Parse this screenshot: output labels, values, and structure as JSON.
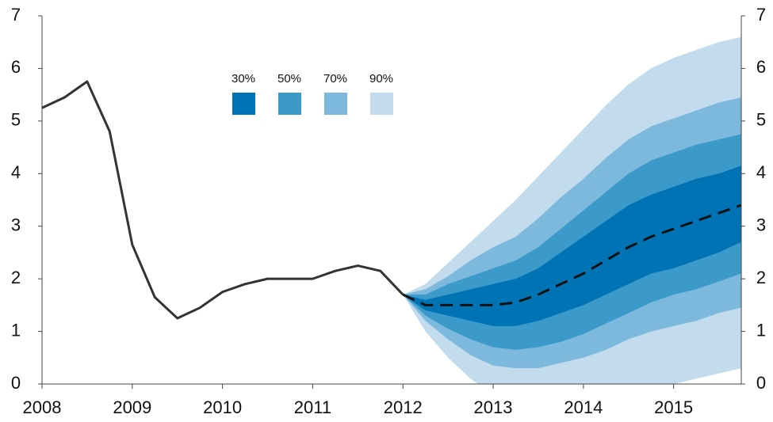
{
  "chart_data": {
    "type": "fan",
    "x": [
      2008,
      2008.25,
      2008.5,
      2008.75,
      2009,
      2009.25,
      2009.5,
      2009.75,
      2010,
      2010.25,
      2010.5,
      2010.75,
      2011,
      2011.25,
      2011.5,
      2011.75,
      2012
    ],
    "history": {
      "color": "#333333",
      "values": [
        5.25,
        5.45,
        5.75,
        4.8,
        2.65,
        1.65,
        1.25,
        1.45,
        1.75,
        1.9,
        2.0,
        2.0,
        2.0,
        2.15,
        2.25,
        2.15,
        1.7
      ]
    },
    "forecast_x": [
      2012,
      2012.25,
      2012.5,
      2012.75,
      2013,
      2013.25,
      2013.5,
      2013.75,
      2014,
      2014.25,
      2014.5,
      2014.75,
      2015,
      2015.25,
      2015.5,
      2015.75
    ],
    "median": {
      "color": "#111111",
      "values": [
        1.7,
        1.5,
        1.5,
        1.5,
        1.5,
        1.55,
        1.7,
        1.9,
        2.1,
        2.35,
        2.6,
        2.8,
        2.95,
        3.1,
        3.25,
        3.4
      ]
    },
    "bands": [
      {
        "name": "30%",
        "color": "#0073b4",
        "upper": [
          1.7,
          1.6,
          1.7,
          1.8,
          1.9,
          2.0,
          2.2,
          2.5,
          2.8,
          3.1,
          3.4,
          3.6,
          3.75,
          3.9,
          4.0,
          4.15
        ],
        "lower": [
          1.7,
          1.4,
          1.3,
          1.2,
          1.1,
          1.1,
          1.2,
          1.35,
          1.5,
          1.7,
          1.9,
          2.1,
          2.2,
          2.35,
          2.5,
          2.7
        ]
      },
      {
        "name": "50%",
        "color": "#3c9acb",
        "upper": [
          1.7,
          1.7,
          1.9,
          2.05,
          2.2,
          2.35,
          2.6,
          2.95,
          3.3,
          3.65,
          4.0,
          4.25,
          4.4,
          4.55,
          4.65,
          4.75
        ],
        "lower": [
          1.7,
          1.3,
          1.05,
          0.85,
          0.7,
          0.65,
          0.7,
          0.8,
          0.95,
          1.15,
          1.35,
          1.55,
          1.7,
          1.8,
          1.95,
          2.1
        ]
      },
      {
        "name": "70%",
        "color": "#7db9dc",
        "upper": [
          1.7,
          1.8,
          2.05,
          2.35,
          2.6,
          2.8,
          3.15,
          3.55,
          3.9,
          4.3,
          4.65,
          4.9,
          5.05,
          5.2,
          5.35,
          5.45
        ],
        "lower": [
          1.7,
          1.2,
          0.85,
          0.55,
          0.35,
          0.3,
          0.3,
          0.4,
          0.5,
          0.65,
          0.85,
          1.0,
          1.1,
          1.2,
          1.35,
          1.45
        ]
      },
      {
        "name": "90%",
        "color": "#c2dcee",
        "upper": [
          1.7,
          1.9,
          2.3,
          2.7,
          3.1,
          3.5,
          3.95,
          4.4,
          4.85,
          5.3,
          5.7,
          6.0,
          6.2,
          6.35,
          6.5,
          6.6
        ],
        "lower": [
          1.7,
          1.0,
          0.5,
          0.1,
          -0.2,
          -0.5,
          -0.6,
          -0.6,
          -0.55,
          -0.4,
          -0.25,
          -0.1,
          0,
          0.1,
          0.2,
          0.3
        ]
      }
    ],
    "xlim": [
      2008,
      2015.75
    ],
    "xticks": [
      2008,
      2009,
      2010,
      2011,
      2012,
      2013,
      2014,
      2015
    ],
    "ylim": [
      0,
      7
    ],
    "yticks": [
      0,
      1,
      2,
      3,
      4,
      5,
      6,
      7
    ],
    "y2lim": [
      0,
      7
    ],
    "y2ticks": [
      0,
      1,
      2,
      3,
      4,
      5,
      6,
      7
    ]
  }
}
